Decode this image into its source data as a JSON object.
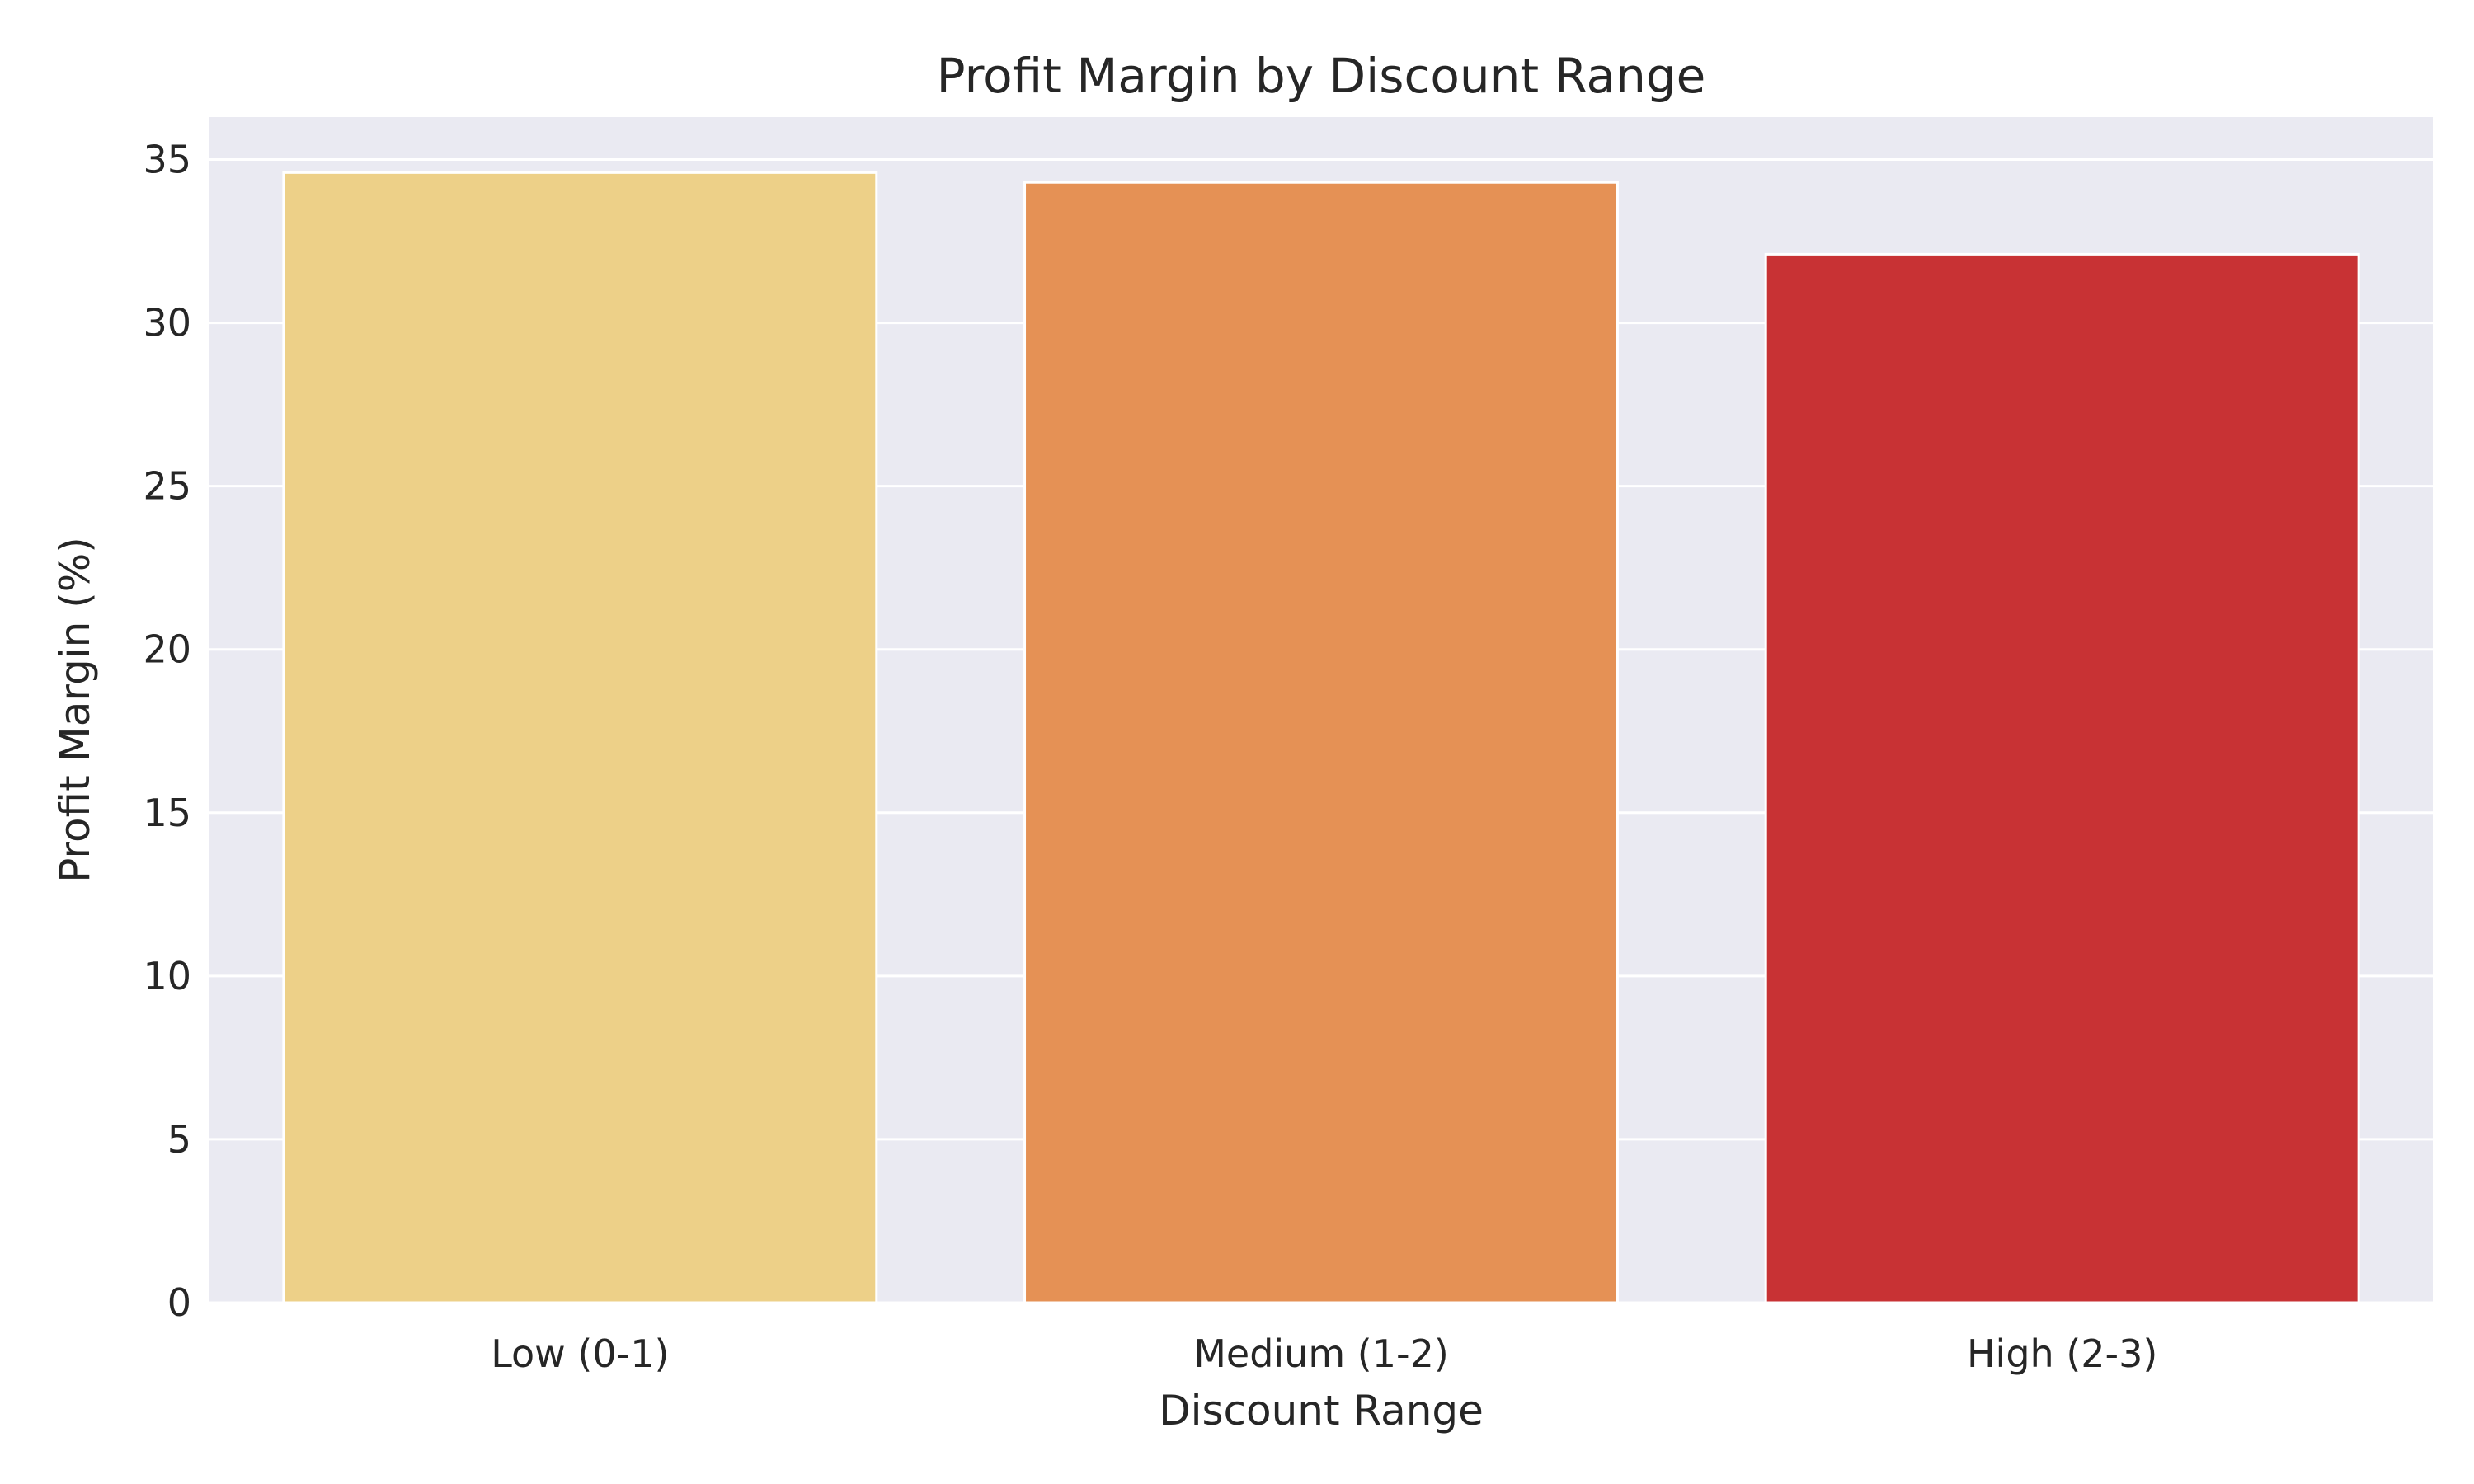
{
  "chart_data": {
    "type": "bar",
    "title": "Profit Margin by Discount Range",
    "xlabel": "Discount Range",
    "ylabel": "Profit Margin (%)",
    "categories": [
      "Low (0-1)",
      "Medium (1-2)",
      "High (2-3)"
    ],
    "values": [
      34.6,
      34.3,
      32.1
    ],
    "colors": [
      "#edd088",
      "#e59155",
      "#c83234"
    ],
    "ylim": [
      0,
      36.3
    ],
    "yticks": [
      0,
      5,
      10,
      15,
      20,
      25,
      30,
      35
    ],
    "ytick_labels": [
      "0",
      "5",
      "10",
      "15",
      "20",
      "25",
      "30",
      "35"
    ],
    "grid": true,
    "background_color": "#eaeaf2",
    "grid_color": "#ffffff"
  }
}
